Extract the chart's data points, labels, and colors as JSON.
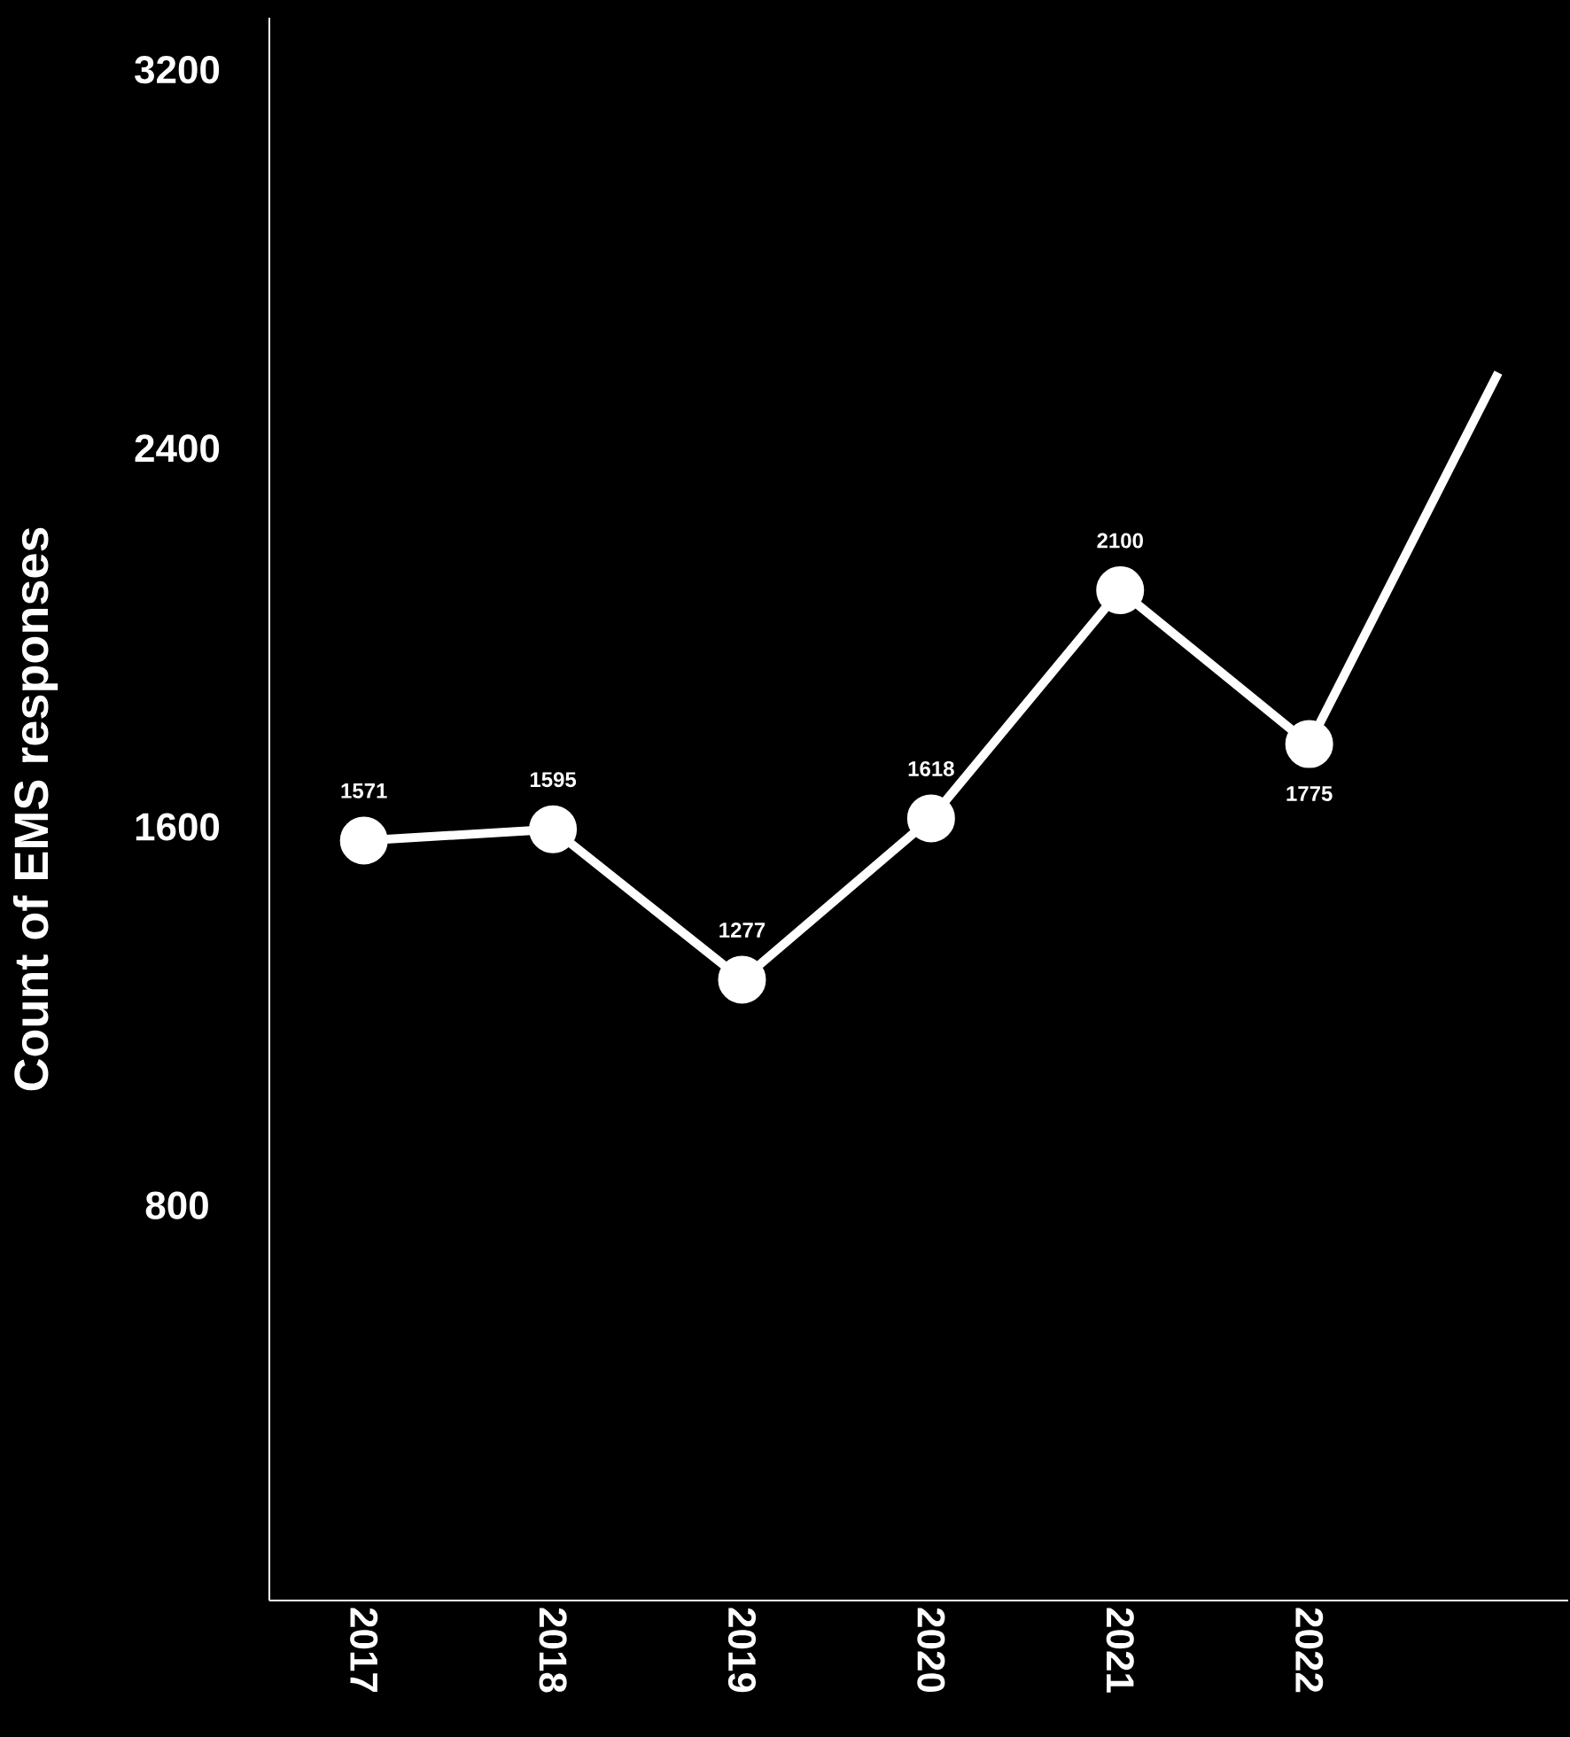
{
  "chart_data": {
    "type": "line",
    "ylabel": "Count of EMS responses",
    "categories": [
      "2017",
      "2018",
      "2019",
      "2020",
      "2021",
      "2022",
      null
    ],
    "series": [
      {
        "color": "#ffffff",
        "values": [
          1571,
          1595,
          1277,
          1618,
          2100,
          1775,
          2560
        ],
        "value_labels": [
          "1571",
          "1595",
          "1277",
          "1618",
          "2100",
          "1775",
          null
        ]
      }
    ],
    "ylim": [
      -35,
      3310
    ],
    "yticks": [
      800,
      1600,
      2400,
      3200
    ],
    "grid": false,
    "marker": "circle",
    "line_style": "solid"
  }
}
